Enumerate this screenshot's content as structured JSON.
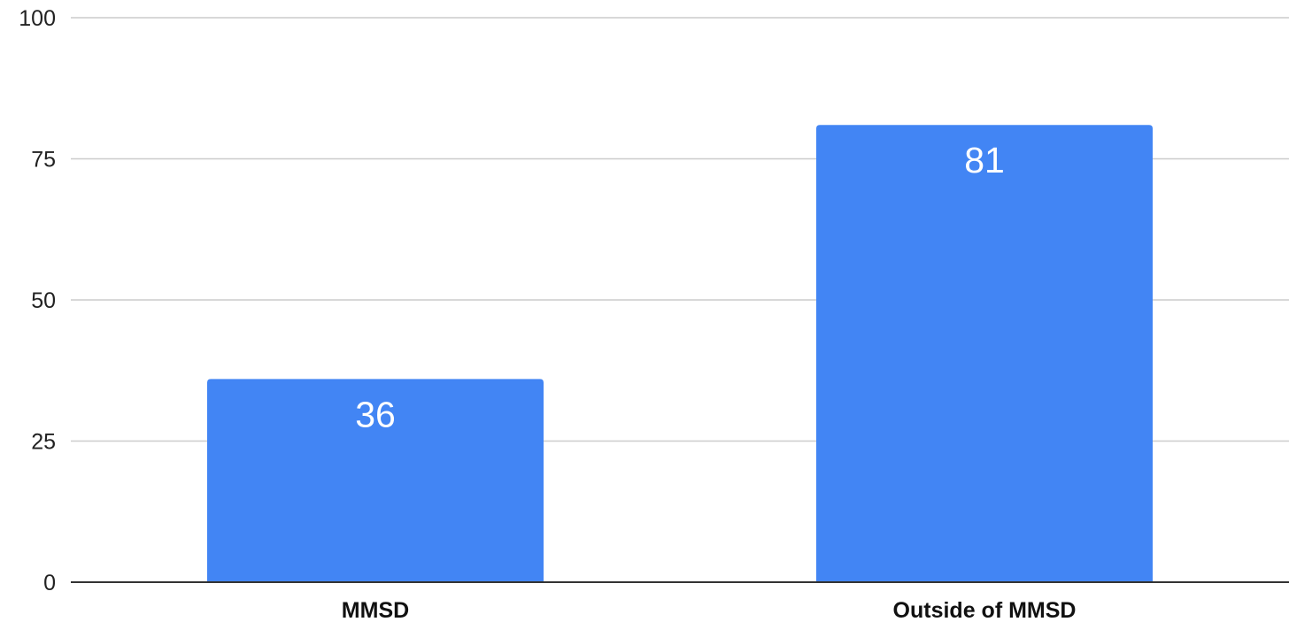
{
  "chart_data": {
    "type": "bar",
    "categories": [
      "MMSD",
      "Outside of MMSD"
    ],
    "values": [
      36,
      81
    ],
    "data_labels": [
      "36",
      "81"
    ],
    "title": "",
    "xlabel": "",
    "ylabel": "",
    "ylim": [
      0,
      100
    ],
    "yticks": [
      0,
      25,
      50,
      75,
      100
    ],
    "ytick_labels": [
      "0",
      "25",
      "50",
      "75",
      "100"
    ],
    "grid": true,
    "legend": "none",
    "bar_color": "#4285f4"
  }
}
